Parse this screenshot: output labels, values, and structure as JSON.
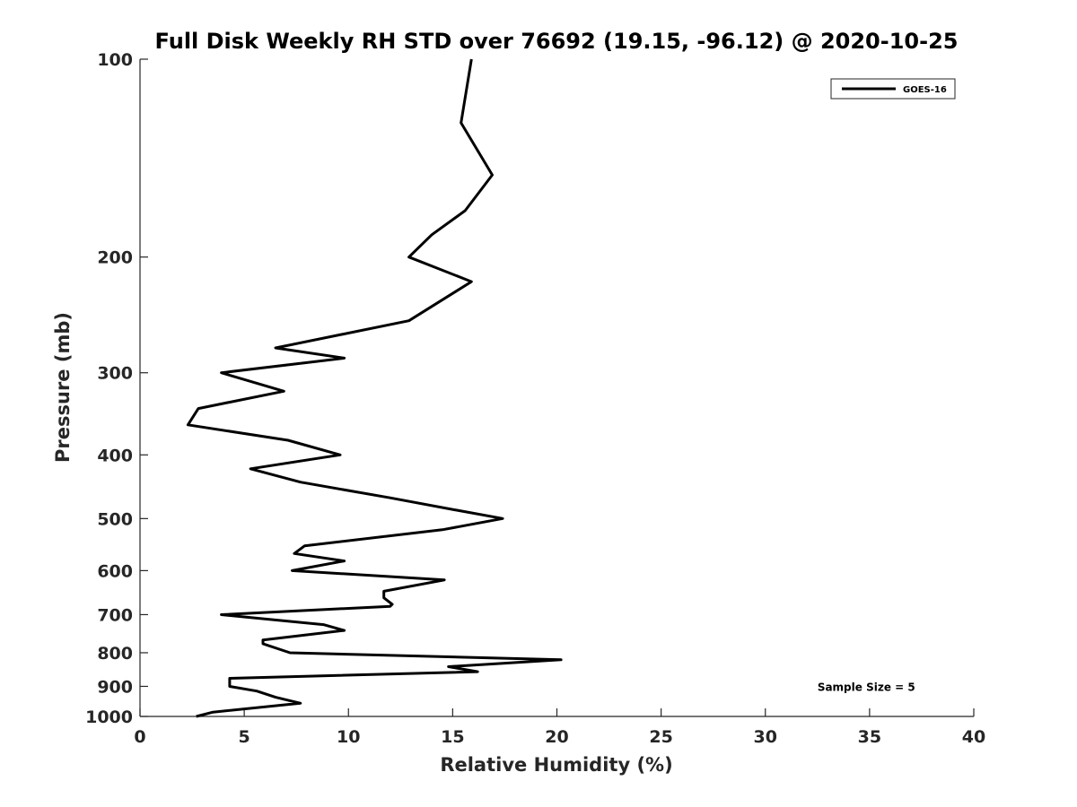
{
  "chart_data": {
    "type": "line",
    "title": "Full Disk Weekly RH STD over 76692 (19.15, -96.12) @ 2020-10-25",
    "xlabel": "Relative Humidity (%)",
    "ylabel": "Pressure (mb)",
    "xlim": [
      0,
      40
    ],
    "ylim": [
      100,
      1000
    ],
    "y_scale": "log",
    "y_reversed": true,
    "x_ticks": [
      0,
      5,
      10,
      15,
      20,
      25,
      30,
      35,
      40
    ],
    "y_ticks": [
      100,
      200,
      300,
      400,
      500,
      600,
      700,
      800,
      900,
      1000
    ],
    "grid": false,
    "legend_position": "top-right",
    "series": [
      {
        "name": "GOES-16",
        "color": "#000000",
        "points": [
          [
            15.9,
            100
          ],
          [
            15.4,
            125
          ],
          [
            16.9,
            150
          ],
          [
            15.6,
            170
          ],
          [
            14.0,
            185
          ],
          [
            12.9,
            200
          ],
          [
            15.9,
            218
          ],
          [
            12.9,
            250
          ],
          [
            6.5,
            275
          ],
          [
            9.8,
            285
          ],
          [
            3.9,
            300
          ],
          [
            6.9,
            320
          ],
          [
            2.8,
            340
          ],
          [
            2.3,
            360
          ],
          [
            7.1,
            380
          ],
          [
            9.6,
            400
          ],
          [
            5.3,
            420
          ],
          [
            7.7,
            440
          ],
          [
            12.0,
            465
          ],
          [
            15.1,
            485
          ],
          [
            17.4,
            500
          ],
          [
            14.5,
            520
          ],
          [
            7.9,
            550
          ],
          [
            7.4,
            565
          ],
          [
            9.8,
            580
          ],
          [
            7.3,
            600
          ],
          [
            14.6,
            620
          ],
          [
            11.7,
            645
          ],
          [
            11.7,
            660
          ],
          [
            12.1,
            675
          ],
          [
            12.0,
            680
          ],
          [
            3.9,
            700
          ],
          [
            8.8,
            725
          ],
          [
            9.8,
            740
          ],
          [
            5.9,
            765
          ],
          [
            5.9,
            775
          ],
          [
            7.2,
            800
          ],
          [
            20.2,
            820
          ],
          [
            14.8,
            840
          ],
          [
            16.2,
            855
          ],
          [
            4.3,
            875
          ],
          [
            4.3,
            900
          ],
          [
            5.6,
            915
          ],
          [
            6.5,
            935
          ],
          [
            7.7,
            955
          ],
          [
            3.5,
            985
          ],
          [
            2.7,
            1000
          ]
        ]
      }
    ],
    "annotations": [
      {
        "text": "Sample Size = 5",
        "x": 32.5,
        "y": 900
      }
    ]
  }
}
